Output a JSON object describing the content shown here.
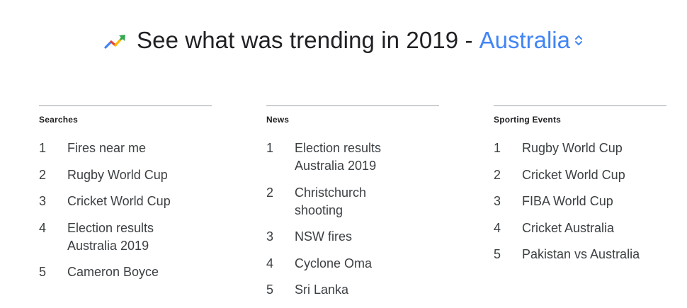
{
  "header": {
    "title": "See what was trending in 2019 -",
    "region": "Australia",
    "icon": "trending-up-icon",
    "colors": {
      "region": "#4285f4",
      "icon_blue": "#4285f4",
      "icon_red": "#ea4335",
      "icon_yellow": "#fbbc04",
      "icon_green": "#34a853"
    }
  },
  "columns": [
    {
      "title": "Searches",
      "items": [
        {
          "rank": "1",
          "label": "Fires near me"
        },
        {
          "rank": "2",
          "label": "Rugby World Cup"
        },
        {
          "rank": "3",
          "label": "Cricket World Cup"
        },
        {
          "rank": "4",
          "label": "Election results Australia 2019"
        },
        {
          "rank": "5",
          "label": "Cameron Boyce"
        }
      ]
    },
    {
      "title": "News",
      "items": [
        {
          "rank": "1",
          "label": "Election results Australia 2019"
        },
        {
          "rank": "2",
          "label": "Christchurch shooting"
        },
        {
          "rank": "3",
          "label": "NSW fires"
        },
        {
          "rank": "4",
          "label": "Cyclone Oma"
        },
        {
          "rank": "5",
          "label": "Sri Lanka"
        }
      ]
    },
    {
      "title": "Sporting Events",
      "items": [
        {
          "rank": "1",
          "label": "Rugby World Cup"
        },
        {
          "rank": "2",
          "label": "Cricket World Cup"
        },
        {
          "rank": "3",
          "label": "FIBA World Cup"
        },
        {
          "rank": "4",
          "label": "Cricket Australia"
        },
        {
          "rank": "5",
          "label": "Pakistan vs Australia"
        }
      ]
    }
  ]
}
